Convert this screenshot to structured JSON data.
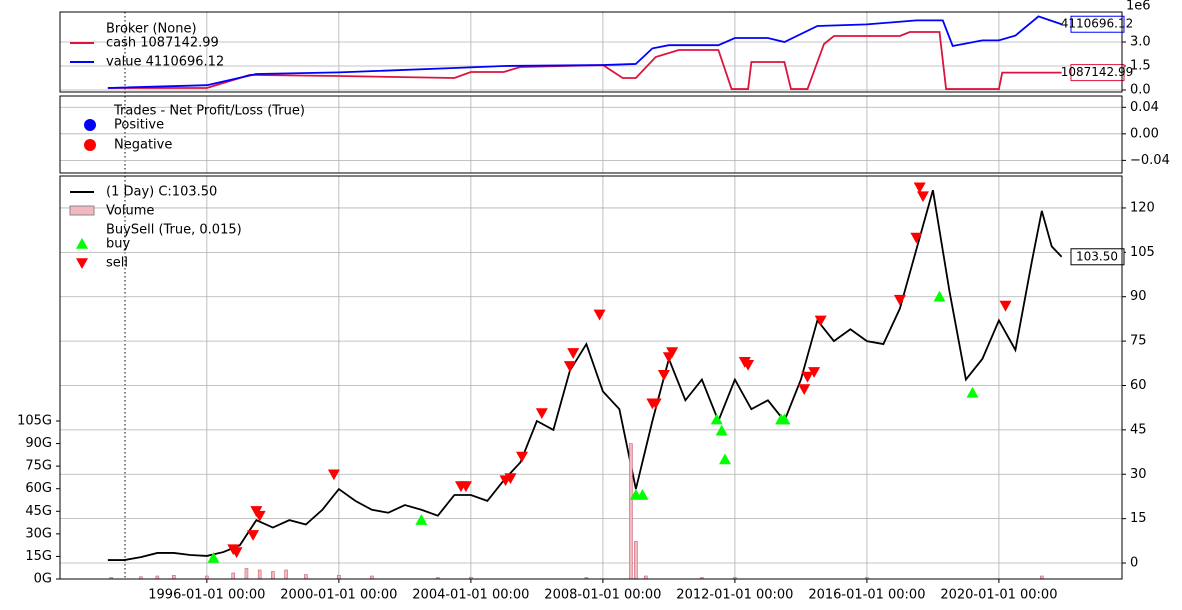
{
  "chart_data": [
    {
      "type": "line",
      "legend_title": "Broker (None)",
      "y_offset_label": "1e6",
      "ylim": [
        -0.125,
        4.875
      ],
      "yticks": [
        {
          "value": 0,
          "label": "0.0"
        },
        {
          "value": 1.5,
          "label": "1.5"
        },
        {
          "value": 3,
          "label": "3.0"
        }
      ],
      "grid": true,
      "series": [
        {
          "name": "cash 1087142.99",
          "color": "#dc143c",
          "type": "line",
          "end_label": "1087142.99",
          "x": [
            1993,
            1996,
            1997.3,
            2000,
            2003.5,
            2004,
            2005,
            2005.5,
            2008,
            2008.6,
            2009,
            2009.6,
            2010.3,
            2011.5,
            2011.9,
            2012.4,
            2012.5,
            2013.5,
            2013.7,
            2014.2,
            2014.7,
            2015,
            2017,
            2017.3,
            2018.2,
            2018.4,
            2020,
            2020.1,
            2021.9
          ],
          "values": [
            0.125,
            0.125,
            0.94,
            0.875,
            0.75,
            1.125,
            1.125,
            1.44,
            1.56,
            0.75,
            0.75,
            2.06,
            2.5,
            2.5,
            0.06,
            0.06,
            1.75,
            1.75,
            0.06,
            0.06,
            2.875,
            3.375,
            3.375,
            3.625,
            3.625,
            0.06,
            0.06,
            1.08714299,
            1.08714299
          ]
        },
        {
          "name": "value 4110696.12",
          "color": "#0000ff",
          "type": "line",
          "end_label": "4110696.12",
          "x": [
            1993,
            1996,
            1997.5,
            2000,
            2003.5,
            2005,
            2008,
            2009,
            2009.5,
            2010,
            2011.5,
            2012,
            2013,
            2013.5,
            2014.5,
            2016,
            2017.5,
            2018.3,
            2018.6,
            2019.5,
            2020,
            2020.5,
            2021.2,
            2021.9
          ],
          "values": [
            0.125,
            0.3,
            1.0,
            1.1,
            1.375,
            1.5,
            1.56,
            1.63,
            2.6,
            2.8,
            2.8,
            3.25,
            3.25,
            3.0,
            4.0,
            4.1,
            4.35,
            4.35,
            2.75,
            3.1,
            3.1,
            3.4,
            4.6,
            4.11069612
          ]
        }
      ]
    },
    {
      "type": "scatter",
      "legend_title": "Trades - Net Profit/Loss (True)",
      "ylim": [
        -0.059,
        0.057
      ],
      "yticks": [
        {
          "value": -0.04,
          "label": "−0.04"
        },
        {
          "value": 0,
          "label": "0.00"
        },
        {
          "value": 0.04,
          "label": "0.04"
        }
      ],
      "grid": true,
      "series": [
        {
          "name": "Positive",
          "color": "#0000ff",
          "type": "scatter",
          "marker": "o",
          "x": [],
          "values": []
        },
        {
          "name": "Negative",
          "color": "#ff0000",
          "type": "scatter",
          "marker": "o",
          "x": [],
          "values": []
        }
      ]
    },
    {
      "type": "line",
      "xlim": [
        1991.55,
        2023.73
      ],
      "xticks": [
        {
          "value": 1996,
          "label": "1996-01-01 00:00"
        },
        {
          "value": 2000,
          "label": "2000-01-01 00:00"
        },
        {
          "value": 2004,
          "label": "2004-01-01 00:00"
        },
        {
          "value": 2008,
          "label": "2008-01-01 00:00"
        },
        {
          "value": 2012,
          "label": "2012-01-01 00:00"
        },
        {
          "value": 2016,
          "label": "2016-01-01 00:00"
        },
        {
          "value": 2020,
          "label": "2020-01-01 00:00"
        }
      ],
      "ylim": [
        -5.4,
        130.8
      ],
      "yticks": [
        0,
        15,
        30,
        45,
        60,
        75,
        90,
        105,
        120
      ],
      "y2lim": [
        0,
        267.8
      ],
      "y2ticks": [
        {
          "value": 0,
          "label": "0G"
        },
        {
          "value": 15,
          "label": "15G"
        },
        {
          "value": 30,
          "label": "30G"
        },
        {
          "value": 45,
          "label": "45G"
        },
        {
          "value": 60,
          "label": "60G"
        },
        {
          "value": 75,
          "label": "75G"
        },
        {
          "value": 90,
          "label": "90G"
        },
        {
          "value": 105,
          "label": "105G"
        }
      ],
      "grid": true,
      "series": [
        {
          "name": "(1 Day) C:103.50",
          "color": "#000000",
          "type": "line",
          "end_label": "103.50",
          "x": [
            1993,
            1993.5,
            1994,
            1994.5,
            1995,
            1995.5,
            1996,
            1996.5,
            1997,
            1997.5,
            1998,
            1998.5,
            1999,
            1999.5,
            2000,
            2000.5,
            2001,
            2001.5,
            2002,
            2002.5,
            2003,
            2003.5,
            2004,
            2004.5,
            2005,
            2005.5,
            2006,
            2006.5,
            2007,
            2007.5,
            2008,
            2008.5,
            2009,
            2009.5,
            2010,
            2010.5,
            2011,
            2011.5,
            2012,
            2012.5,
            2013,
            2013.5,
            2014,
            2014.5,
            2015,
            2015.5,
            2016,
            2016.5,
            2017,
            2017.5,
            2018,
            2018.5,
            2019,
            2019.5,
            2020,
            2020.5,
            2021,
            2021.3,
            2021.6,
            2021.9
          ],
          "values": [
            1,
            1,
            2,
            3.4,
            3.4,
            2.7,
            2.4,
            3.7,
            6,
            14.5,
            12,
            14.5,
            13,
            18,
            25,
            21,
            18,
            17,
            19.6,
            18,
            16,
            23,
            23,
            21,
            28,
            34,
            48,
            45,
            65,
            74,
            58,
            52,
            25,
            48,
            69,
            55,
            62,
            48,
            62,
            52,
            55,
            48,
            62,
            82,
            75,
            79,
            75,
            74,
            86,
            106,
            126,
            92,
            62,
            69,
            82,
            72,
            102,
            119,
            107,
            103.5
          ]
        },
        {
          "name": "Volume",
          "color": "#f2b8c0",
          "type": "bar",
          "axis": "y2",
          "x": [
            1993.1,
            1994,
            1994.5,
            1995,
            1996,
            1996.8,
            1997.2,
            1997.6,
            1998,
            1998.4,
            1999,
            2000,
            2001,
            2003,
            2004,
            2007.5,
            2008.85,
            2009.0,
            2009.3,
            2011,
            2012,
            2016,
            2021.3
          ],
          "values": [
            1,
            1.5,
            2,
            2.5,
            2,
            4,
            7,
            6,
            5,
            6,
            3,
            2.5,
            2,
            1,
            1.2,
            1,
            90,
            25,
            2,
            1,
            1,
            1,
            2
          ]
        },
        {
          "name": "buy",
          "legend_group": "BuySell (True, 0.015)",
          "color": "#00ff00",
          "type": "scatter",
          "marker": "^",
          "x": [
            1996.2,
            2002.5,
            2009.0,
            2009.2,
            2011.45,
            2011.6,
            2011.7,
            2013.4,
            2013.5,
            2018.2,
            2019.2
          ],
          "values": [
            1.7,
            14.5,
            23,
            23,
            48.5,
            44.7,
            35,
            48.5,
            48.5,
            90,
            57.5
          ]
        },
        {
          "name": "sell",
          "color": "#ff0000",
          "type": "scatter",
          "marker": "v",
          "x": [
            1996.8,
            1996.9,
            1997.4,
            1997.5,
            1997.6,
            1999.85,
            2003.7,
            2003.85,
            2005.05,
            2005.2,
            2005.55,
            2006.15,
            2007.0,
            2007.1,
            2007.9,
            2009.5,
            2009.6,
            2009.85,
            2010.0,
            2010.1,
            2012.3,
            2012.4,
            2014.1,
            2014.2,
            2014.4,
            2014.6,
            2017.0,
            2017.5,
            2017.6,
            2017.7,
            2020.2
          ],
          "values": [
            4.7,
            3.7,
            9.5,
            17.6,
            16,
            30,
            26,
            26,
            28,
            28.7,
            36,
            50.7,
            66.6,
            71,
            84,
            54,
            54,
            63.6,
            69.6,
            71.3,
            68,
            67,
            58.8,
            63,
            64.6,
            82,
            89,
            110,
            127,
            124,
            87
          ]
        }
      ]
    }
  ]
}
